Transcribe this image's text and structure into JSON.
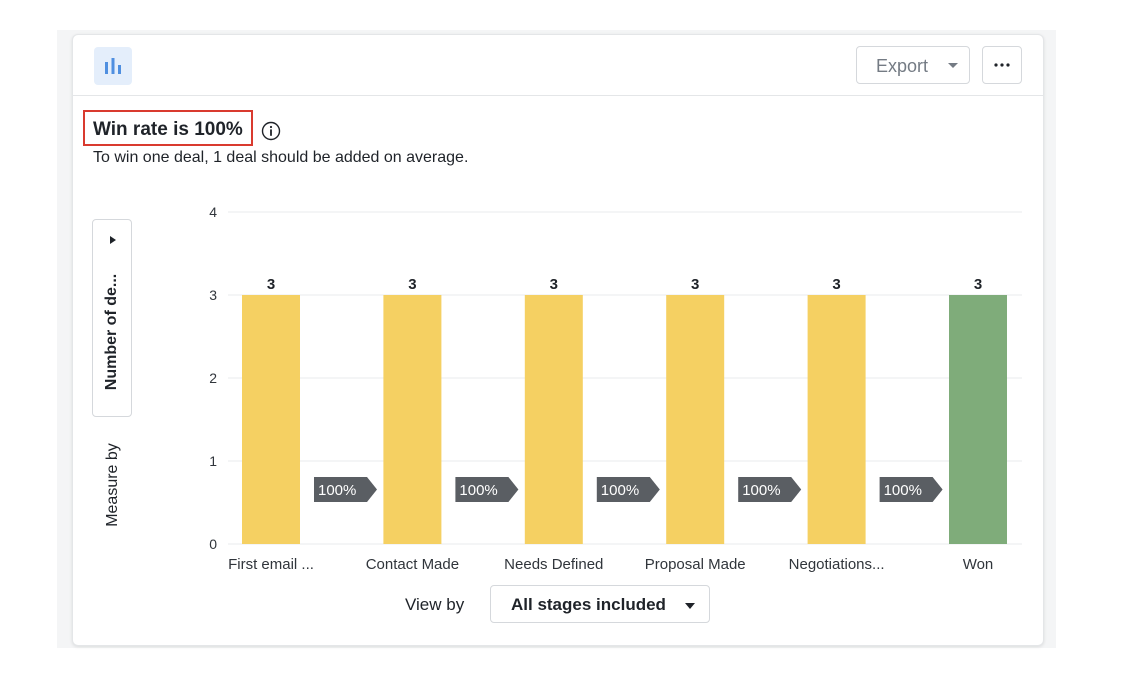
{
  "header": {
    "chart_icon": "bar-chart-icon",
    "export_label": "Export",
    "more_icon": "more-horizontal-icon"
  },
  "summary": {
    "title": "Win rate is 100%",
    "info_icon": "info-icon",
    "subtitle": "To win one deal, 1 deal should be added on average."
  },
  "measure_by": {
    "label": "Measure by",
    "value": "Number of de..."
  },
  "view_by": {
    "label": "View by",
    "value": "All stages included"
  },
  "colors": {
    "stage_bar": "#f5d062",
    "won_bar": "#7fac7a",
    "conversion_badge": "#5a5e63",
    "highlight_border": "#d93a2f"
  },
  "chart_data": {
    "type": "bar",
    "categories": [
      "First email ...",
      "Contact Made",
      "Needs Defined",
      "Proposal Made",
      "Negotiations...",
      "Won"
    ],
    "values": [
      3,
      3,
      3,
      3,
      3,
      3
    ],
    "value_labels": [
      "3",
      "3",
      "3",
      "3",
      "3",
      "3"
    ],
    "conversion_labels": [
      "100%",
      "100%",
      "100%",
      "100%",
      "100%"
    ],
    "y_ticks": [
      0,
      1,
      2,
      3,
      4
    ],
    "ylim": [
      0,
      4
    ],
    "grid": true,
    "highlight_last": true
  }
}
